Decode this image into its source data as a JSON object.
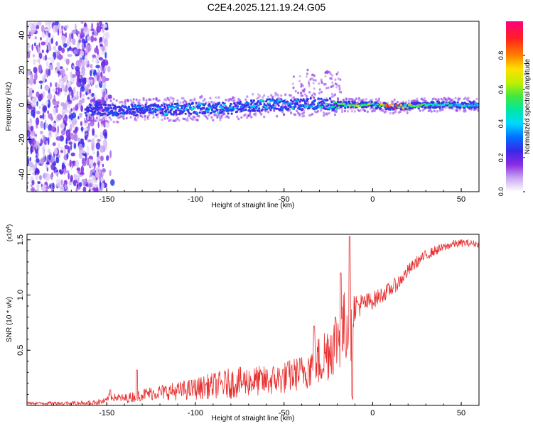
{
  "page": {
    "title": "C2E4.2025.121.19.24.G05"
  },
  "chart_data": [
    {
      "type": "heatmap",
      "xlabel": "Height of straight line (km)",
      "ylabel": "Frequency (Hz)",
      "xlim": [
        -195,
        60
      ],
      "ylim": [
        -50,
        48
      ],
      "xticks": [
        -150,
        -100,
        -50,
        0,
        50
      ],
      "yticks": [
        -40,
        -20,
        0,
        20,
        40
      ],
      "colorbar": {
        "label": "Normalized spectral amplitude",
        "range": [
          0,
          1
        ],
        "ticks": [
          0.0,
          0.2,
          0.4,
          0.6,
          0.8
        ],
        "tick_labels": [
          "0.0",
          "0.2",
          "0.4",
          "0.6",
          "0.8"
        ]
      },
      "ridge": {
        "description": "narrow band centered near 0 Hz",
        "x": [
          -162,
          -150,
          -120,
          -100,
          -80,
          -70,
          -60,
          -50,
          -40,
          -30,
          -20,
          -10,
          0,
          10,
          20,
          30,
          40,
          50,
          60
        ],
        "center_hz": [
          -3,
          -3,
          -3,
          -2,
          -2,
          -1,
          0,
          0,
          0,
          1,
          0,
          0,
          0,
          -1,
          -1,
          0,
          0,
          0,
          0
        ],
        "amplitude": [
          0.2,
          0.25,
          0.35,
          0.4,
          0.4,
          0.35,
          0.4,
          0.35,
          0.4,
          0.4,
          0.5,
          0.55,
          0.55,
          0.85,
          0.6,
          0.5,
          0.45,
          0.45,
          0.4
        ]
      },
      "noise_region_x": [
        -195,
        -150
      ]
    },
    {
      "type": "line",
      "xlabel": "Height of straight line (km)",
      "ylabel": "SNR (10 * v/v)",
      "y_multiplier": "(x10",
      "y_multiplier_exp": "4",
      "y_multiplier_close": ")",
      "xlim": [
        -195,
        60
      ],
      "ylim": [
        0,
        1.55
      ],
      "xticks": [
        -150,
        -100,
        -50,
        0,
        50
      ],
      "yticks": [
        0.5,
        1.0,
        1.5
      ],
      "ytick_labels": [
        "0.5",
        "1.0",
        "1.5"
      ],
      "series": [
        {
          "color": "#e83030",
          "x": [
            -195,
            -175,
            -160,
            -150,
            -149,
            -140,
            -135,
            -130,
            -120,
            -110,
            -100,
            -90,
            -80,
            -70,
            -60,
            -50,
            -40,
            -30,
            -25,
            -20,
            -15,
            -12,
            -10,
            -5,
            0,
            5,
            10,
            15,
            20,
            25,
            30,
            35,
            40,
            45,
            50,
            55,
            60
          ],
          "y": [
            0.02,
            0.02,
            0.02,
            0.04,
            0.08,
            0.06,
            0.08,
            0.1,
            0.12,
            0.13,
            0.15,
            0.18,
            0.2,
            0.22,
            0.22,
            0.25,
            0.3,
            0.4,
            0.5,
            0.62,
            0.72,
            0.78,
            0.9,
            0.92,
            0.95,
            1.0,
            1.05,
            1.12,
            1.22,
            1.3,
            1.36,
            1.4,
            1.43,
            1.46,
            1.47,
            1.47,
            1.46
          ]
        }
      ],
      "noise_amplitude": {
        "x": [
          -195,
          -150,
          -120,
          -100,
          -80,
          -60,
          -40,
          -30,
          -20,
          -12,
          -10,
          0,
          20,
          40,
          60
        ],
        "amp": [
          0.01,
          0.03,
          0.07,
          0.1,
          0.14,
          0.14,
          0.16,
          0.25,
          0.32,
          0.38,
          0.12,
          0.08,
          0.06,
          0.04,
          0.03
        ]
      },
      "spikes": [
        {
          "x": -148,
          "y": 0.14
        },
        {
          "x": -133,
          "y": 0.32
        },
        {
          "x": -13,
          "y": 1.53
        },
        {
          "x": -18,
          "y": 1.2
        },
        {
          "x": -33,
          "y": 0.72
        }
      ]
    }
  ]
}
